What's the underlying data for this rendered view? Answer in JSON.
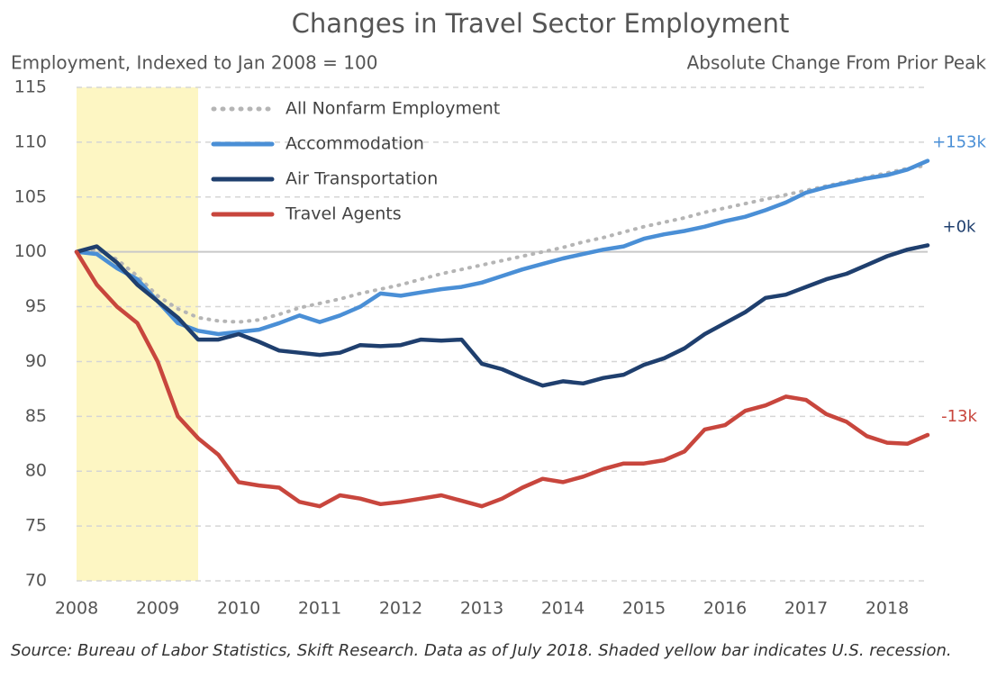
{
  "chart_data": {
    "type": "line",
    "title": "Changes in Travel Sector Employment",
    "subtitle": "Employment, Indexed to Jan 2008 = 100",
    "right_subtitle": "Absolute Change From Prior Peak",
    "source": "Source: Bureau of Labor Statistics, Skift Research. Data as of July 2018. Shaded yellow bar indicates U.S. recession.",
    "recession": [
      2008,
      2009.5
    ],
    "reference_line": 100,
    "grid": true,
    "legend": "top-left",
    "xlim": [
      2008,
      2018.5
    ],
    "xticks": [
      2008,
      2009,
      2010,
      2011,
      2012,
      2013,
      2014,
      2015,
      2016,
      2017,
      2018
    ],
    "ylim": [
      70,
      115
    ],
    "yticks": [
      70,
      75,
      80,
      85,
      90,
      95,
      100,
      105,
      110,
      115
    ],
    "x": [
      2008,
      2008.25,
      2008.5,
      2008.75,
      2009,
      2009.25,
      2009.5,
      2009.75,
      2010,
      2010.25,
      2010.5,
      2010.75,
      2011,
      2011.25,
      2011.5,
      2011.75,
      2012,
      2012.25,
      2012.5,
      2012.75,
      2013,
      2013.25,
      2013.5,
      2013.75,
      2014,
      2014.25,
      2014.5,
      2014.75,
      2015,
      2015.25,
      2015.5,
      2015.75,
      2016,
      2016.25,
      2016.5,
      2016.75,
      2017,
      2017.25,
      2017.5,
      2017.75,
      2018,
      2018.25,
      2018.5
    ],
    "series": [
      {
        "name": "All Nonfarm Employment",
        "color": "#b5b5b5",
        "dash": true,
        "values": [
          100,
          100.2,
          99.3,
          97.8,
          96,
          94.8,
          94,
          93.7,
          93.6,
          93.8,
          94.3,
          94.9,
          95.3,
          95.7,
          96.2,
          96.6,
          97,
          97.5,
          98,
          98.4,
          98.8,
          99.2,
          99.6,
          100,
          100.4,
          100.9,
          101.3,
          101.8,
          102.3,
          102.7,
          103.1,
          103.6,
          104,
          104.4,
          104.8,
          105.2,
          105.6,
          106,
          106.4,
          106.8,
          107.2,
          107.6,
          107.9
        ]
      },
      {
        "name": "Accommodation",
        "color": "#4a8fd6",
        "end_label": "+153k",
        "values": [
          100,
          99.8,
          98.5,
          97.5,
          95.5,
          93.5,
          92.8,
          92.5,
          92.7,
          92.9,
          93.5,
          94.2,
          93.6,
          94.2,
          95,
          96.2,
          96,
          96.3,
          96.6,
          96.8,
          97.2,
          97.8,
          98.4,
          98.9,
          99.4,
          99.8,
          100.2,
          100.5,
          101.2,
          101.6,
          101.9,
          102.3,
          102.8,
          103.2,
          103.8,
          104.5,
          105.4,
          105.9,
          106.3,
          106.7,
          107,
          107.5,
          108.3
        ]
      },
      {
        "name": "Air Transportation",
        "color": "#1f3f6e",
        "end_label": "+0k",
        "values": [
          100,
          100.5,
          99,
          97,
          95.5,
          94,
          92,
          92,
          92.5,
          91.8,
          91,
          90.8,
          90.6,
          90.8,
          91.5,
          91.4,
          91.5,
          92,
          91.9,
          92,
          89.8,
          89.3,
          88.5,
          87.8,
          88.2,
          88,
          88.5,
          88.8,
          89.7,
          90.3,
          91.2,
          92.5,
          93.5,
          94.5,
          95.8,
          96.1,
          96.8,
          97.5,
          98,
          98.8,
          99.6,
          100.2,
          100.6
        ]
      },
      {
        "name": "Travel Agents",
        "color": "#c8463d",
        "end_label": "-13k",
        "values": [
          100,
          97,
          95,
          93.5,
          90,
          85,
          83,
          81.5,
          79,
          78.7,
          78.5,
          77.2,
          76.8,
          77.8,
          77.5,
          77,
          77.2,
          77.5,
          77.8,
          77.3,
          76.8,
          77.5,
          78.5,
          79.3,
          79,
          79.5,
          80.2,
          80.7,
          80.7,
          81,
          81.8,
          83.8,
          84.2,
          85.5,
          86,
          86.8,
          86.5,
          85.2,
          84.5,
          83.2,
          82.6,
          82.5,
          83.3
        ]
      }
    ]
  }
}
